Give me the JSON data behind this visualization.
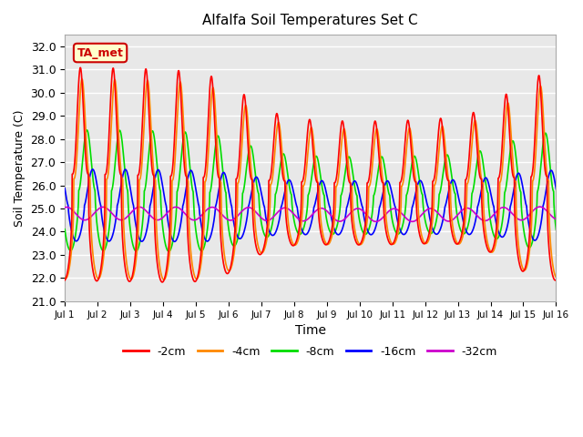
{
  "title": "Alfalfa Soil Temperatures Set C",
  "xlabel": "Time",
  "ylabel": "Soil Temperature (C)",
  "ylim": [
    21.0,
    32.5
  ],
  "xlim": [
    0,
    15
  ],
  "yticks": [
    21.0,
    22.0,
    23.0,
    24.0,
    25.0,
    26.0,
    27.0,
    28.0,
    29.0,
    30.0,
    31.0,
    32.0
  ],
  "xtick_labels": [
    "Jul 1",
    "Jul 2",
    "Jul 3",
    "Jul 4",
    "Jul 5",
    "Jul 6",
    "Jul 7",
    "Jul 8",
    "Jul 9",
    "Jul 10",
    "Jul 11",
    "Jul 12",
    "Jul 13",
    "Jul 14",
    "Jul 15",
    "Jul 16"
  ],
  "colors": {
    "2cm": "#ff0000",
    "4cm": "#ff8800",
    "8cm": "#00dd00",
    "16cm": "#0000ff",
    "32cm": "#cc00cc"
  },
  "legend_labels": [
    "-2cm",
    "-4cm",
    "-8cm",
    "-16cm",
    "-32cm"
  ],
  "annotation_text": "TA_met",
  "annotation_box_facecolor": "#ffffcc",
  "annotation_text_color": "#cc0000",
  "background_color": "#e8e8e8",
  "grid_color": "#ffffff",
  "linewidth": 1.2
}
